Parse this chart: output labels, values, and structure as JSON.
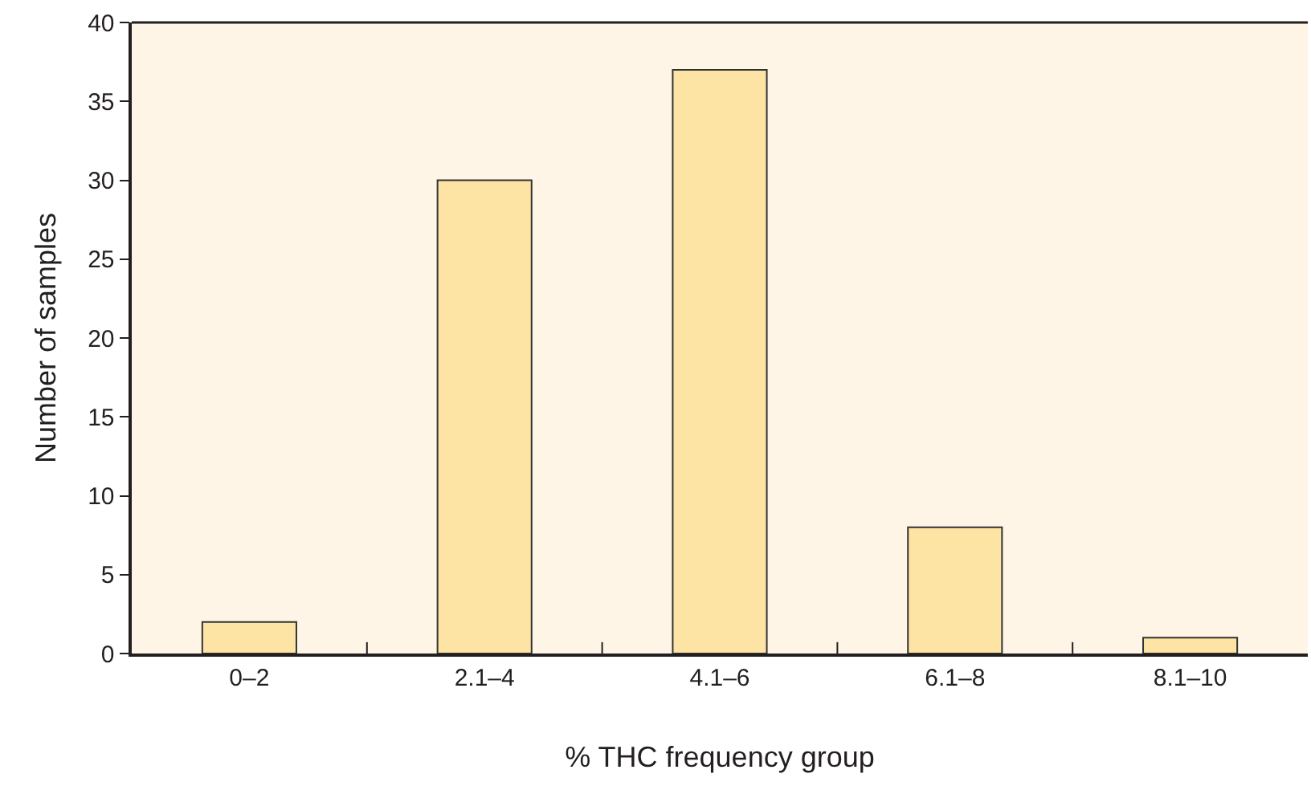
{
  "chart_data": {
    "type": "bar",
    "xlabel": "% THC frequency group",
    "ylabel": "Number of samples",
    "categories": [
      "0–2",
      "2.1–4",
      "4.1–6",
      "6.1–8",
      "8.1–10"
    ],
    "series": [
      {
        "color": "#fde4a5",
        "values": [
          2,
          30,
          37,
          8,
          1
        ]
      }
    ],
    "ylim": [
      0,
      40
    ],
    "yticks": [
      0,
      5,
      10,
      15,
      20,
      25,
      30,
      35,
      40
    ],
    "grid": false,
    "legend": false
  }
}
